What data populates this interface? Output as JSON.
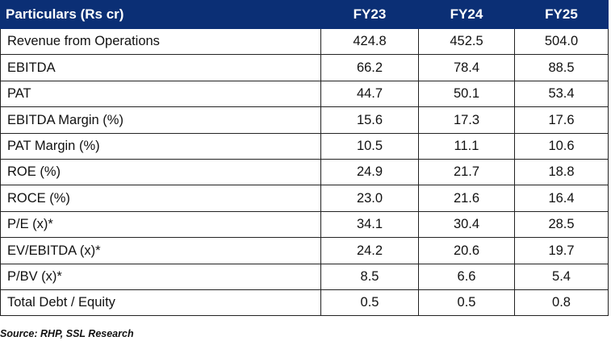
{
  "table": {
    "headers": [
      "Particulars (Rs cr)",
      "FY23",
      "FY24",
      "FY25"
    ],
    "rows": [
      [
        "Revenue from Operations",
        "424.8",
        "452.5",
        "504.0"
      ],
      [
        "EBITDA",
        "66.2",
        "78.4",
        "88.5"
      ],
      [
        "PAT",
        "44.7",
        "50.1",
        "53.4"
      ],
      [
        "EBITDA Margin (%)",
        "15.6",
        "17.3",
        "17.6"
      ],
      [
        "PAT Margin (%)",
        "10.5",
        "11.1",
        "10.6"
      ],
      [
        "ROE (%)",
        "24.9",
        "21.7",
        "18.8"
      ],
      [
        "ROCE (%)",
        "23.0",
        "21.6",
        "16.4"
      ],
      [
        "P/E (x)*",
        "34.1",
        "30.4",
        "28.5"
      ],
      [
        "EV/EBITDA (x)*",
        "24.2",
        "20.6",
        "19.7"
      ],
      [
        "P/BV (x)*",
        "8.5",
        "6.6",
        "5.4"
      ],
      [
        "Total Debt / Equity",
        "0.5",
        "0.5",
        "0.8"
      ]
    ]
  },
  "source": "Source: RHP, SSL Research",
  "colors": {
    "header_bg": "#0b2f75",
    "header_text": "#ffffff",
    "border": "#222222"
  }
}
